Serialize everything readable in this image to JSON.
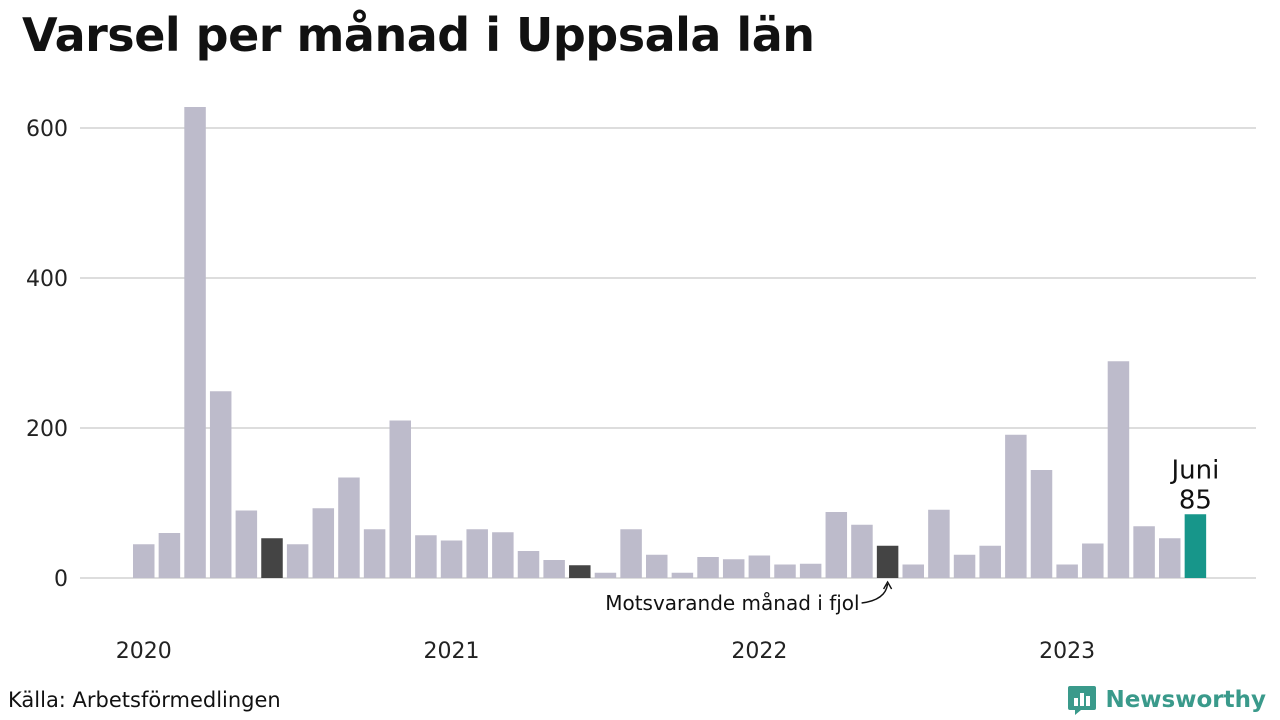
{
  "title": "Varsel per månad i Uppsala län",
  "source": "Källa: Arbetsförmedlingen",
  "brand": {
    "name": "Newsworthy",
    "icon": "newsworthy-logo-icon"
  },
  "colors": {
    "bar": "#bdbbcb",
    "same_month": "#444444",
    "current": "#17968a",
    "grid": "#dddddd",
    "brand": "#3a9a8b"
  },
  "chart_data": {
    "type": "bar",
    "title": "Varsel per månad i Uppsala län",
    "xlabel": "",
    "ylabel": "",
    "ylim": [
      0,
      630
    ],
    "yticks": [
      0,
      200,
      400,
      600
    ],
    "year_labels": [
      "2020",
      "2021",
      "2022",
      "2023"
    ],
    "categories": [
      "2020-01",
      "2020-02",
      "2020-03",
      "2020-04",
      "2020-05",
      "2020-06",
      "2020-07",
      "2020-08",
      "2020-09",
      "2020-10",
      "2020-11",
      "2020-12",
      "2021-01",
      "2021-02",
      "2021-03",
      "2021-04",
      "2021-05",
      "2021-06",
      "2021-07",
      "2021-08",
      "2021-09",
      "2021-10",
      "2021-11",
      "2021-12",
      "2022-01",
      "2022-02",
      "2022-03",
      "2022-04",
      "2022-05",
      "2022-06",
      "2022-07",
      "2022-08",
      "2022-09",
      "2022-10",
      "2022-11",
      "2022-12",
      "2023-01",
      "2023-02",
      "2023-03",
      "2023-04",
      "2023-05",
      "2023-06"
    ],
    "values": [
      45,
      60,
      628,
      249,
      90,
      53,
      45,
      93,
      134,
      65,
      210,
      57,
      50,
      65,
      61,
      36,
      24,
      17,
      7,
      65,
      31,
      7,
      28,
      25,
      30,
      18,
      19,
      88,
      71,
      43,
      18,
      91,
      31,
      43,
      191,
      144,
      18,
      46,
      289,
      69,
      53,
      85
    ],
    "highlight_same_month": [
      "2020-06",
      "2021-06",
      "2022-06"
    ],
    "highlight_current": "2023-06",
    "current_label": {
      "month": "Juni",
      "value": "85"
    },
    "annotation": "Motsvarande månad i fjol",
    "grid": true
  }
}
